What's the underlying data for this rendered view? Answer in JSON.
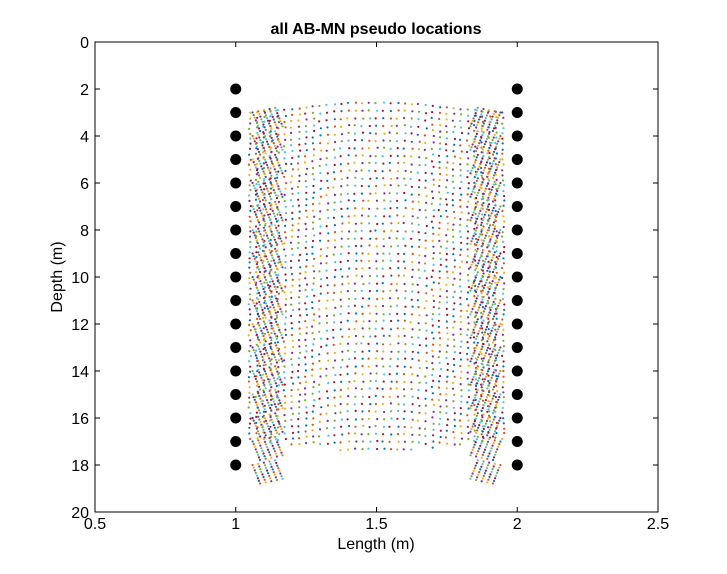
{
  "chart_data": {
    "type": "scatter",
    "title": "all AB-MN pseudo locations",
    "xlabel": "Length (m)",
    "ylabel": "Depth (m)",
    "xlim": [
      0.5,
      2.5
    ],
    "ylim": [
      0,
      20
    ],
    "y_reversed": true,
    "xticks": [
      0.5,
      1,
      1.5,
      2,
      2.5
    ],
    "xtick_labels": [
      "0.5",
      "1",
      "1.5",
      "2",
      "2.5"
    ],
    "yticks": [
      0,
      2,
      4,
      6,
      8,
      10,
      12,
      14,
      16,
      18,
      20
    ],
    "ytick_labels": [
      "0",
      "2",
      "4",
      "6",
      "8",
      "10",
      "12",
      "14",
      "16",
      "18",
      "20"
    ],
    "grid": false,
    "legend": "none",
    "electrodes": {
      "name": "electrodes",
      "color": "#000000",
      "marker": "filled-circle",
      "x": [
        1,
        1,
        1,
        1,
        1,
        1,
        1,
        1,
        1,
        1,
        1,
        1,
        1,
        1,
        1,
        1,
        1,
        2,
        2,
        2,
        2,
        2,
        2,
        2,
        2,
        2,
        2,
        2,
        2,
        2,
        2,
        2,
        2,
        2
      ],
      "y": [
        2,
        3,
        4,
        5,
        6,
        7,
        8,
        9,
        10,
        11,
        12,
        13,
        14,
        15,
        16,
        17,
        18,
        2,
        3,
        4,
        5,
        6,
        7,
        8,
        9,
        10,
        11,
        12,
        13,
        14,
        15,
        16,
        17,
        18
      ]
    },
    "pseudo_locations": {
      "electrode_depths": [
        2,
        3,
        4,
        5,
        6,
        7,
        8,
        9,
        10,
        11,
        12,
        13,
        14,
        15,
        16,
        17,
        18
      ],
      "x_from_source_offset": [
        0.125,
        0.25,
        0.375
      ],
      "x_extent": [
        1.05,
        1.95
      ],
      "y_extent": [
        2.5,
        17.5
      ],
      "marker_size": "small",
      "palette": [
        "#0072BD",
        "#D95319",
        "#EDB120",
        "#7E2F8E",
        "#77AC30",
        "#4DBEEE",
        "#A2142F"
      ]
    }
  }
}
